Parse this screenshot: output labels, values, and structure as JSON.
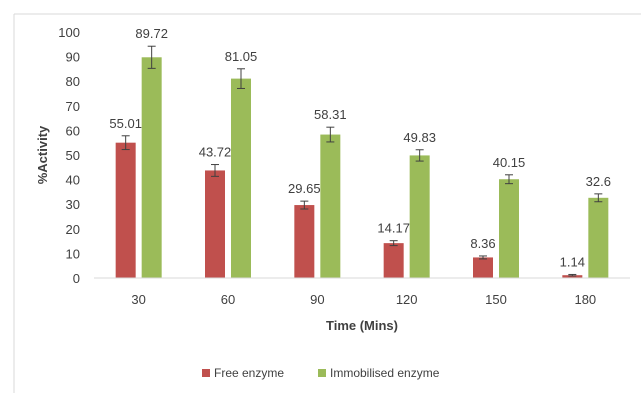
{
  "chart_data": {
    "type": "bar",
    "title": "",
    "xlabel": "Time (Mins)",
    "ylabel": "%Activity",
    "categories": [
      "30",
      "60",
      "90",
      "120",
      "150",
      "180"
    ],
    "ylim": [
      0,
      100
    ],
    "yticks": [
      0,
      10,
      20,
      30,
      40,
      50,
      60,
      70,
      80,
      90,
      100
    ],
    "grid": false,
    "legend_position": "bottom",
    "series": [
      {
        "name": "Free enzyme",
        "color": "#c0504d",
        "values": [
          55.01,
          43.72,
          29.65,
          14.17,
          8.36,
          1.14
        ],
        "labels": [
          "55.01",
          "43.72",
          "29.65",
          "14.17",
          "8.36",
          "1.14"
        ],
        "errors": [
          2.8,
          2.4,
          1.6,
          1.0,
          0.6,
          0.3
        ]
      },
      {
        "name": "Immobilised enzyme",
        "color": "#9bbb59",
        "values": [
          89.72,
          81.05,
          58.31,
          49.83,
          40.15,
          32.6
        ],
        "labels": [
          "89.72",
          "81.05",
          "58.31",
          "49.83",
          "40.15",
          "32.6"
        ],
        "errors": [
          4.5,
          4.0,
          3.0,
          2.3,
          1.8,
          1.6
        ]
      }
    ]
  }
}
